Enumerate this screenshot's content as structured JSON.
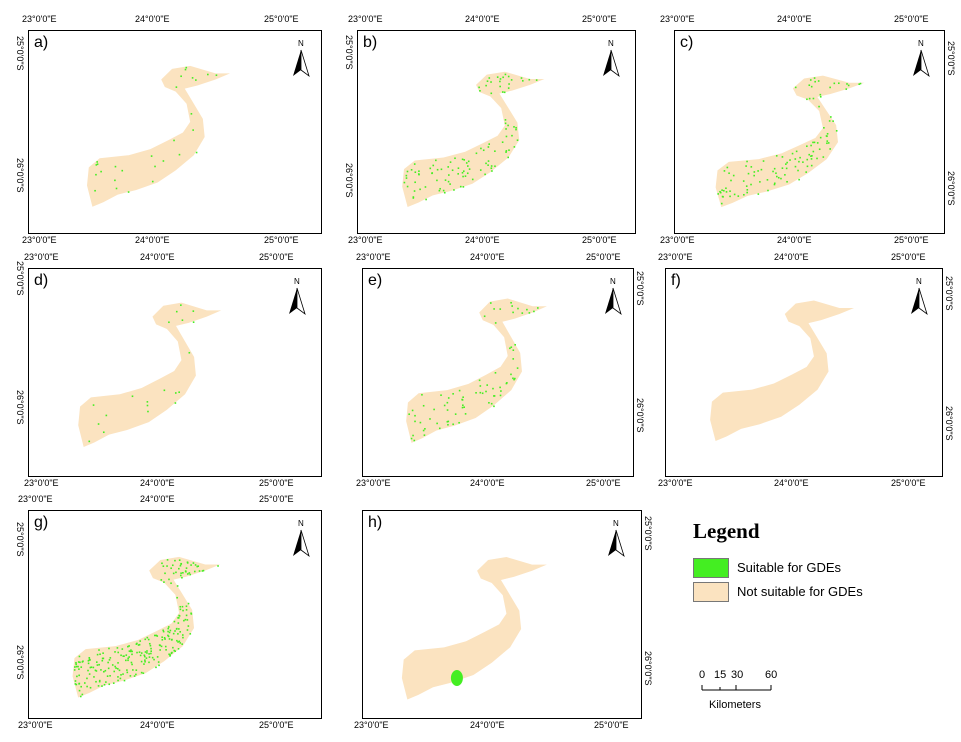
{
  "panels": [
    {
      "id": "a",
      "label": "a)",
      "density": 0.12
    },
    {
      "id": "b",
      "label": "b)",
      "density": 0.35
    },
    {
      "id": "c",
      "label": "c)",
      "density": 0.45
    },
    {
      "id": "d",
      "label": "d)",
      "density": 0.08
    },
    {
      "id": "e",
      "label": "e)",
      "density": 0.3
    },
    {
      "id": "f",
      "label": "f)",
      "density": 0.0
    },
    {
      "id": "g",
      "label": "g)",
      "density": 0.95
    },
    {
      "id": "h",
      "label": "h)",
      "density": 0.0
    }
  ],
  "axis_labels": {
    "lon": [
      "23°0'0\"E",
      "24°0'0\"E",
      "25°0'0\"E"
    ],
    "lat": [
      "25°0'0\"S",
      "26°0'0\"S"
    ]
  },
  "north_label": "N",
  "legend": {
    "title": "Legend",
    "items": [
      {
        "label": "Suitable for GDEs",
        "color": "#44ee22"
      },
      {
        "label": "Not suitable for GDEs",
        "color": "#fbe3c0"
      }
    ]
  },
  "scalebar": {
    "labels": [
      "0",
      "15",
      "30",
      "60"
    ],
    "unit": "Kilometers"
  },
  "colors": {
    "region": "#fbe3c0",
    "suitable": "#44ee22"
  }
}
